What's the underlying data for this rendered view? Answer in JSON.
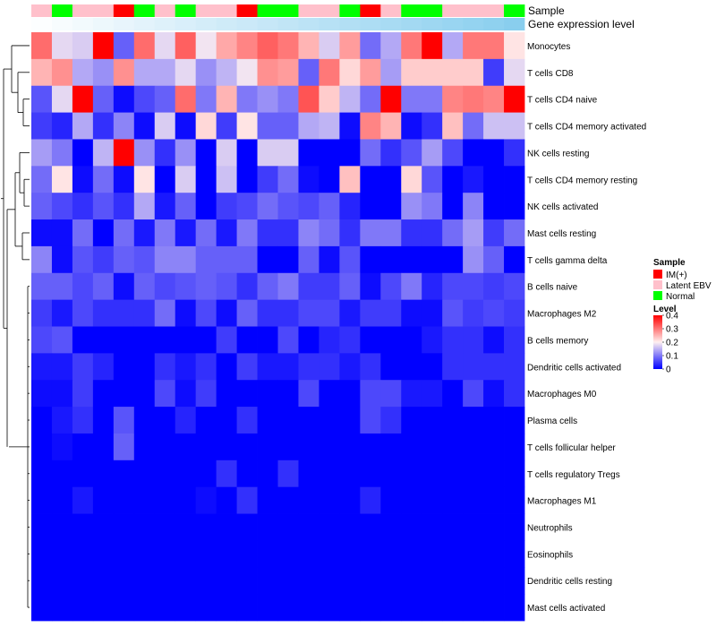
{
  "chart_data": {
    "type": "heatmap",
    "title": "",
    "annotation_tracks": [
      "Sample",
      "Gene expression level"
    ],
    "rows": [
      "Monocytes",
      "T cells CD8",
      "T cells CD4 naive",
      "T cells CD4 memory activated",
      "NK cells resting",
      "T cells CD4 memory resting",
      "NK cells activated",
      "Mast cells resting",
      "T cells gamma delta",
      "B cells naive",
      "Macrophages M2",
      "B cells memory",
      "Dendritic cells activated",
      "Macrophages M0",
      "Plasma cells",
      "T cells follicular helper",
      "T cells regulatory  Tregs",
      "Macrophages M1",
      "Neutrophils",
      "Eosinophils",
      "Dendritic cells resting",
      "Mast cells activated"
    ],
    "sample_groups": [
      "Latent EBV",
      "Normal",
      "Latent EBV",
      "Latent EBV",
      "IM(+)",
      "Normal",
      "Latent EBV",
      "Normal",
      "Latent EBV",
      "Latent EBV",
      "IM(+)",
      "Normal",
      "Normal",
      "Latent EBV",
      "Latent EBV",
      "Normal",
      "IM(+)",
      "Latent EBV",
      "Normal",
      "Normal",
      "Latent EBV",
      "Latent EBV",
      "Latent EBV",
      "Normal"
    ],
    "expression_track": [
      0.02,
      0.05,
      0.08,
      0.11,
      0.14,
      0.17,
      0.2,
      0.23,
      0.26,
      0.29,
      0.32,
      0.35,
      0.38,
      0.41,
      0.44,
      0.47,
      0.5,
      0.53,
      0.56,
      0.59,
      0.62,
      0.65,
      0.68,
      0.72
    ],
    "values": [
      [
        0.31,
        0.18,
        0.17,
        0.4,
        0.08,
        0.31,
        0.18,
        0.32,
        0.19,
        0.26,
        0.29,
        0.32,
        0.3,
        0.25,
        0.17,
        0.27,
        0.09,
        0.14,
        0.3,
        0.4,
        0.14,
        0.3,
        0.3,
        0.21
      ],
      [
        0.25,
        0.28,
        0.14,
        0.12,
        0.28,
        0.14,
        0.14,
        0.18,
        0.12,
        0.15,
        0.19,
        0.28,
        0.27,
        0.08,
        0.3,
        0.22,
        0.27,
        0.13,
        0.23,
        0.23,
        0.23,
        0.23,
        0.05,
        0.18
      ],
      [
        0.07,
        0.18,
        0.4,
        0.08,
        0.01,
        0.06,
        0.08,
        0.31,
        0.1,
        0.25,
        0.1,
        0.12,
        0.1,
        0.33,
        0.23,
        0.15,
        0.09,
        0.4,
        0.1,
        0.1,
        0.29,
        0.3,
        0.29,
        0.4
      ],
      [
        0.05,
        0.03,
        0.14,
        0.04,
        0.11,
        0.01,
        0.17,
        0.01,
        0.22,
        0.05,
        0.21,
        0.08,
        0.08,
        0.14,
        0.15,
        0.01,
        0.29,
        0.25,
        0.01,
        0.04,
        0.24,
        0.09,
        0.16,
        0.16
      ],
      [
        0.13,
        0.1,
        0.0,
        0.15,
        0.4,
        0.12,
        0.04,
        0.12,
        0.0,
        0.17,
        0.0,
        0.17,
        0.17,
        0.0,
        0.0,
        0.0,
        0.09,
        0.04,
        0.07,
        0.13,
        0.06,
        0.0,
        0.0,
        0.04
      ],
      [
        0.09,
        0.21,
        0.01,
        0.09,
        0.01,
        0.21,
        0.0,
        0.17,
        0.0,
        0.16,
        0.0,
        0.05,
        0.09,
        0.01,
        0.0,
        0.24,
        0.0,
        0.0,
        0.22,
        0.07,
        0.0,
        0.02,
        0.0,
        0.0
      ],
      [
        0.08,
        0.06,
        0.04,
        0.07,
        0.04,
        0.14,
        0.02,
        0.08,
        0.0,
        0.05,
        0.06,
        0.09,
        0.07,
        0.06,
        0.08,
        0.03,
        0.0,
        0.0,
        0.12,
        0.1,
        0.0,
        0.11,
        0.0,
        0.0
      ],
      [
        0.01,
        0.01,
        0.09,
        0.0,
        0.09,
        0.02,
        0.1,
        0.02,
        0.09,
        0.02,
        0.1,
        0.04,
        0.04,
        0.11,
        0.09,
        0.04,
        0.1,
        0.1,
        0.04,
        0.04,
        0.09,
        0.13,
        0.05,
        0.09
      ],
      [
        0.11,
        0.01,
        0.07,
        0.05,
        0.08,
        0.07,
        0.11,
        0.11,
        0.08,
        0.08,
        0.08,
        0.0,
        0.0,
        0.08,
        0.01,
        0.07,
        0.0,
        0.0,
        0.0,
        0.0,
        0.0,
        0.12,
        0.08,
        0.0
      ],
      [
        0.08,
        0.08,
        0.06,
        0.08,
        0.01,
        0.08,
        0.06,
        0.07,
        0.08,
        0.07,
        0.04,
        0.08,
        0.1,
        0.05,
        0.05,
        0.08,
        0.01,
        0.06,
        0.1,
        0.03,
        0.06,
        0.06,
        0.05,
        0.06
      ],
      [
        0.05,
        0.02,
        0.06,
        0.04,
        0.04,
        0.04,
        0.09,
        0.01,
        0.06,
        0.01,
        0.08,
        0.04,
        0.04,
        0.06,
        0.06,
        0.02,
        0.05,
        0.05,
        0.01,
        0.01,
        0.07,
        0.05,
        0.06,
        0.05
      ],
      [
        0.06,
        0.07,
        0.0,
        0.0,
        0.0,
        0.0,
        0.0,
        0.0,
        0.0,
        0.05,
        0.0,
        0.0,
        0.06,
        0.0,
        0.03,
        0.04,
        0.0,
        0.0,
        0.0,
        0.02,
        0.04,
        0.04,
        0.01,
        0.04
      ],
      [
        0.02,
        0.02,
        0.05,
        0.03,
        0.0,
        0.0,
        0.04,
        0.02,
        0.04,
        0.0,
        0.05,
        0.02,
        0.02,
        0.04,
        0.04,
        0.02,
        0.04,
        0.0,
        0.0,
        0.0,
        0.04,
        0.04,
        0.04,
        0.04
      ],
      [
        0.01,
        0.01,
        0.05,
        0.0,
        0.0,
        0.0,
        0.06,
        0.01,
        0.05,
        0.0,
        0.0,
        0.0,
        0.0,
        0.06,
        0.0,
        0.0,
        0.06,
        0.06,
        0.02,
        0.02,
        0.0,
        0.06,
        0.01,
        0.04
      ],
      [
        0.0,
        0.02,
        0.04,
        0.0,
        0.07,
        0.0,
        0.0,
        0.03,
        0.0,
        0.0,
        0.04,
        0.0,
        0.0,
        0.0,
        0.0,
        0.0,
        0.06,
        0.04,
        0.0,
        0.0,
        0.0,
        0.0,
        0.0,
        0.0
      ],
      [
        0.0,
        0.01,
        0.0,
        0.0,
        0.08,
        0.0,
        0.0,
        0.0,
        0.0,
        0.0,
        0.0,
        0.0,
        0.0,
        0.0,
        0.0,
        0.0,
        0.0,
        0.0,
        0.0,
        0.0,
        0.0,
        0.0,
        0.0,
        0.0
      ],
      [
        0.0,
        0.0,
        0.0,
        0.0,
        0.0,
        0.0,
        0.0,
        0.0,
        0.0,
        0.04,
        0.0,
        0.0,
        0.04,
        0.0,
        0.0,
        0.0,
        0.0,
        0.0,
        0.0,
        0.0,
        0.0,
        0.0,
        0.0,
        0.0
      ],
      [
        0.0,
        0.0,
        0.02,
        0.0,
        0.0,
        0.0,
        0.0,
        0.0,
        0.01,
        0.0,
        0.04,
        0.0,
        0.0,
        0.0,
        0.0,
        0.0,
        0.03,
        0.0,
        0.0,
        0.0,
        0.0,
        0.0,
        0.0,
        0.0
      ],
      [
        0.0,
        0.0,
        0.0,
        0.0,
        0.0,
        0.0,
        0.0,
        0.0,
        0.0,
        0.0,
        0.0,
        0.0,
        0.0,
        0.0,
        0.0,
        0.0,
        0.0,
        0.0,
        0.0,
        0.0,
        0.0,
        0.0,
        0.0,
        0.0
      ],
      [
        0.0,
        0.0,
        0.0,
        0.0,
        0.0,
        0.0,
        0.0,
        0.0,
        0.0,
        0.0,
        0.0,
        0.0,
        0.0,
        0.0,
        0.0,
        0.0,
        0.0,
        0.0,
        0.0,
        0.0,
        0.0,
        0.0,
        0.0,
        0.0
      ],
      [
        0.0,
        0.0,
        0.0,
        0.0,
        0.0,
        0.0,
        0.0,
        0.0,
        0.0,
        0.0,
        0.0,
        0.0,
        0.0,
        0.0,
        0.0,
        0.0,
        0.0,
        0.0,
        0.0,
        0.0,
        0.0,
        0.0,
        0.0,
        0.0
      ],
      [
        0.0,
        0.0,
        0.0,
        0.0,
        0.0,
        0.0,
        0.0,
        0.0,
        0.0,
        0.0,
        0.0,
        0.0,
        0.0,
        0.0,
        0.0,
        0.0,
        0.0,
        0.0,
        0.0,
        0.0,
        0.0,
        0.0,
        0.0,
        0.0
      ]
    ],
    "color_scale": {
      "min": 0,
      "mid": 0.2,
      "max": 0.4,
      "low_color": "#0000ff",
      "mid_color": "#fff0f0",
      "high_color": "#ff0000"
    },
    "legend": {
      "position": "right",
      "sample_title": "Sample",
      "sample_entries": [
        {
          "label": "IM(+)",
          "color": "#ff0000"
        },
        {
          "label": "Latent EBV",
          "color": "#ffc0cb"
        },
        {
          "label": "Normal",
          "color": "#00ff00"
        }
      ],
      "level_title": "Level",
      "level_ticks": [
        "0.4",
        "0.3",
        "0.2",
        "0.1",
        "0"
      ],
      "level_tick_values": [
        0.4,
        0.3,
        0.2,
        0.1,
        0
      ]
    },
    "expression_track_colors": {
      "low": "#ffffff",
      "high": "#5bbbe8"
    },
    "dendrogram": "row clustering (hierarchical)"
  }
}
